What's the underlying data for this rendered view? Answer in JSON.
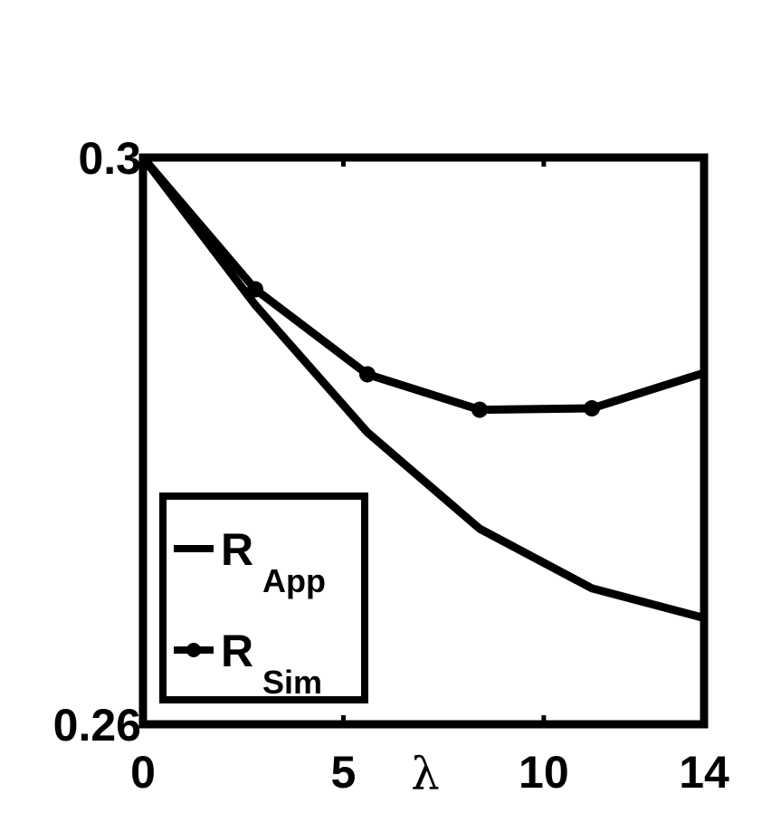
{
  "chart_data": {
    "type": "line",
    "xlabel": "λ",
    "ylabel": "",
    "xlim": [
      0,
      14
    ],
    "ylim": [
      0.26,
      0.3
    ],
    "x_tick_labels": [
      "0",
      "5",
      "10",
      "14"
    ],
    "x_tick_values": [
      0,
      5,
      10,
      14
    ],
    "y_tick_labels": [
      "0.3",
      "0.26"
    ],
    "y_tick_values": [
      0.3,
      0.26
    ],
    "grid": false,
    "legend_placement": "bottom-left",
    "series": [
      {
        "name": "R_App",
        "legend_main": "R",
        "legend_sub": "App",
        "marker": "none",
        "color": "#000000",
        "x": [
          0,
          2.8,
          5.6,
          8.4,
          11.2,
          14
        ],
        "y": [
          0.3,
          0.2896,
          0.2806,
          0.2738,
          0.2696,
          0.2675
        ]
      },
      {
        "name": "R_Sim",
        "legend_main": "R",
        "legend_sub": "Sim",
        "marker": "circle",
        "color": "#000000",
        "x": [
          0,
          2.8,
          5.6,
          8.4,
          11.2,
          14
        ],
        "y": [
          0.3,
          0.2907,
          0.2847,
          0.2822,
          0.2823,
          0.2848
        ]
      }
    ]
  }
}
